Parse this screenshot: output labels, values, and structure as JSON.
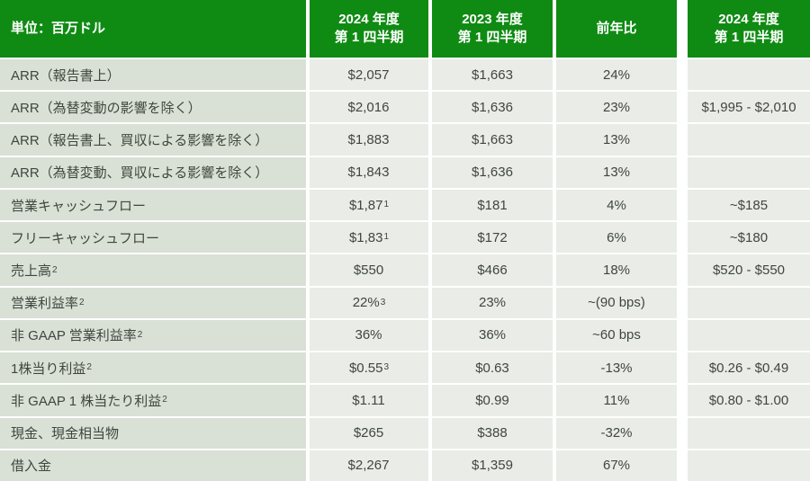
{
  "header": {
    "unit": "単位：百万ドル",
    "col_2024": {
      "line1": "2024 年度",
      "line2": "第 1 四半期"
    },
    "col_2023": {
      "line1": "2023 年度",
      "line2": "第 1 四半期"
    },
    "col_yoy": "前年比",
    "col_outlook": {
      "line1": "2024 年度",
      "line2": "第 1 四半期"
    }
  },
  "colors": {
    "header_green": "#0f8b13",
    "label_cell_bg": "#d9e0d6",
    "value_cell_bg": "#e9ece7",
    "body_text": "#3f463f",
    "header_text": "#ffffff"
  },
  "rows": [
    {
      "label": "ARR（報告書上）",
      "label_sup": "",
      "v2024": "$2,057",
      "v2024_sup": "",
      "v2023": "$1,663",
      "yoy": "24%",
      "outlook": ""
    },
    {
      "label": "ARR（為替変動の影響を除く）",
      "label_sup": "",
      "v2024": "$2,016",
      "v2024_sup": "",
      "v2023": "$1,636",
      "yoy": "23%",
      "outlook": "$1,995 - $2,010"
    },
    {
      "label": "ARR（報告書上、買収による影響を除く）",
      "label_sup": "",
      "v2024": "$1,883",
      "v2024_sup": "",
      "v2023": "$1,663",
      "yoy": "13%",
      "outlook": ""
    },
    {
      "label": "ARR（為替変動、買収による影響を除く）",
      "label_sup": "",
      "v2024": "$1,843",
      "v2024_sup": "",
      "v2023": "$1,636",
      "yoy": "13%",
      "outlook": ""
    },
    {
      "label": "営業キャッシュフロー",
      "label_sup": "",
      "v2024": "$1,87",
      "v2024_sup": "1",
      "v2023": "$181",
      "yoy": "4%",
      "outlook": "~$185"
    },
    {
      "label": "フリーキャッシュフロー",
      "label_sup": "",
      "v2024": "$1,83",
      "v2024_sup": "1",
      "v2023": "$172",
      "yoy": "6%",
      "outlook": "~$180"
    },
    {
      "label": "売上高",
      "label_sup": "2",
      "v2024": "$550",
      "v2024_sup": "",
      "v2023": "$466",
      "yoy": "18%",
      "outlook": "$520 - $550"
    },
    {
      "label": "営業利益率",
      "label_sup": "2",
      "v2024": "22%",
      "v2024_sup": "3",
      "v2023": "23%",
      "yoy": "~(90 bps)",
      "outlook": ""
    },
    {
      "label": "非 GAAP 営業利益率",
      "label_sup": "2",
      "v2024": "36%",
      "v2024_sup": "",
      "v2023": "36%",
      "yoy": "~60 bps",
      "outlook": ""
    },
    {
      "label": "1株当り利益",
      "label_sup": "2",
      "v2024": "$0.55",
      "v2024_sup": "3",
      "v2023": "$0.63",
      "yoy": "-13%",
      "outlook": "$0.26 - $0.49"
    },
    {
      "label": "非 GAAP 1 株当たり利益",
      "label_sup": "2",
      "v2024": "$1.11",
      "v2024_sup": "",
      "v2023": "$0.99",
      "yoy": "11%",
      "outlook": "$0.80 - $1.00"
    },
    {
      "label": "現金、現金相当物",
      "label_sup": "",
      "v2024": "$265",
      "v2024_sup": "",
      "v2023": "$388",
      "yoy": "-32%",
      "outlook": ""
    },
    {
      "label": "借入金",
      "label_sup": "",
      "v2024": "$2,267",
      "v2024_sup": "",
      "v2023": "$1,359",
      "yoy": "67%",
      "outlook": ""
    }
  ]
}
